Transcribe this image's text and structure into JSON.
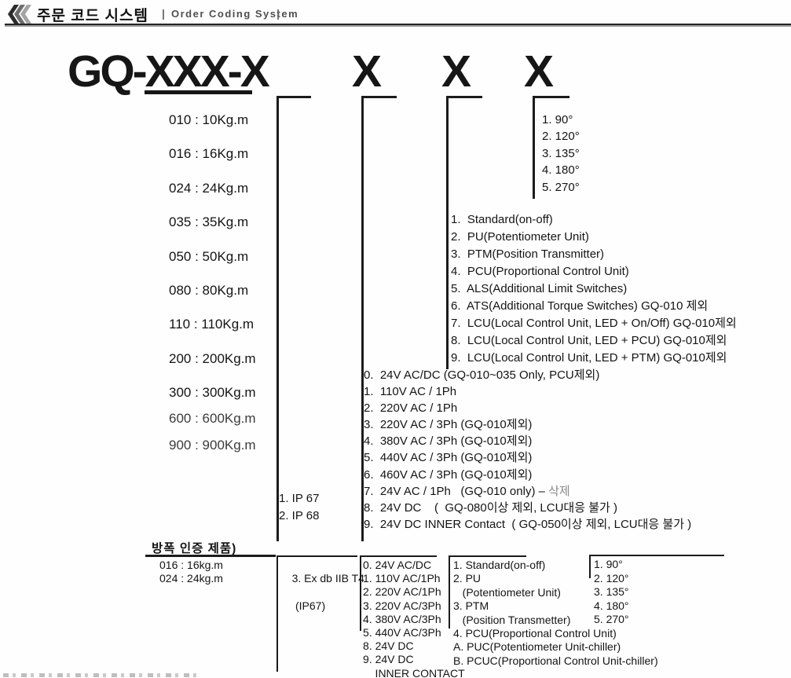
{
  "header": {
    "title_ko": "주문 코드 시스템",
    "divider_left": "|",
    "title_en": "Order Coding System",
    "divider_right": "|"
  },
  "code": {
    "base": "GQ-XXX-X",
    "x2": "X",
    "x3": "X",
    "x4": "X"
  },
  "torque": {
    "items": [
      "010 : 10Kg.m",
      "016 : 16Kg.m",
      "024 : 24Kg.m",
      "035 : 35Kg.m",
      "050 : 50Kg.m",
      "080 : 80Kg.m",
      "110 : 110Kg.m",
      "200 : 200Kg.m",
      "300 : 300Kg.m"
    ],
    "items_gray": [
      "600 : 600Kg.m",
      "900 : 900Kg.m"
    ]
  },
  "ip": {
    "items": [
      "1. IP 67",
      "2. IP 68"
    ]
  },
  "power": {
    "items": [
      "0.  24V AC/DC (GQ-010~035 Only, PCU제외)",
      "1.  110V AC / 1Ph",
      "2.  220V AC / 1Ph",
      "3.  220V AC / 3Ph (GQ-010제외)",
      "4.  380V AC / 3Ph (GQ-010제외)",
      "5.  440V AC / 3Ph (GQ-010제외)",
      "6.  460V AC / 3Ph (GQ-010제외)",
      {
        "text": "7.  24V AC / 1Ph   (GQ-010 only) – ",
        "gray": "삭제"
      },
      "8.  24V DC    (  GQ-080이상 제외, LCU대응 불가 )",
      "9.  24V DC INNER Contact  ( GQ-050이상 제외, LCU대응 불가 )"
    ]
  },
  "options": {
    "items": [
      "1.  Standard(on-off)",
      "2.  PU(Potentiometer Unit)",
      "3.  PTM(Position Transmitter)",
      "4.  PCU(Proportional Control Unit)",
      "5.  ALS(Additional Limit Switches)",
      "6.  ATS(Additional Torque Switches) GQ-010 제외",
      "7.  LCU(Local Control Unit, LED + On/Off) GQ-010제외",
      "8.  LCU(Local Control Unit, LED + PCU) GQ-010제외",
      "9.  LCU(Local Control Unit, LED + PTM) GQ-010제외"
    ]
  },
  "angles": {
    "items": [
      "1. 90°",
      "2. 120°",
      "3. 135°",
      "4. 180°",
      "5. 270°"
    ]
  },
  "explosion": {
    "heading": "방폭 인증 제품)",
    "torque_items": [
      "016 : 16kg.m",
      "024 : 24kg.m"
    ],
    "cert_line1": "3. Ex db IIB T4",
    "cert_line2": "(IP67)",
    "power_items": [
      "0. 24V AC/DC",
      "1. 110V AC/1Ph",
      "2. 220V AC/1Ph",
      "3. 220V AC/3Ph",
      "4. 380V AC/3Ph",
      "5. 440V AC/3Ph",
      "8. 24V DC",
      "9. 24V DC",
      "    INNER CONTACT"
    ],
    "option_items": [
      "1. Standard(on-off)",
      "2. PU",
      "   (Potentiometer Unit)",
      "3. PTM",
      "   (Position Transmetter)",
      "4. PCU(Proportional Control Unit)",
      "A. PUC(Potentiometer Unit-chiller)",
      "B. PCUC(Proportional Control Unit-chiller)"
    ],
    "angle_items": [
      "1. 90°",
      "2. 120°",
      "3. 135°",
      "4. 180°",
      "5. 270°"
    ]
  },
  "colors": {
    "ink": "#141414",
    "secondary_text": "#3c3c3c",
    "deleted_text": "#8a8a8a",
    "rule_dark": "#242424",
    "rule_gray": "#9a9a9a"
  }
}
